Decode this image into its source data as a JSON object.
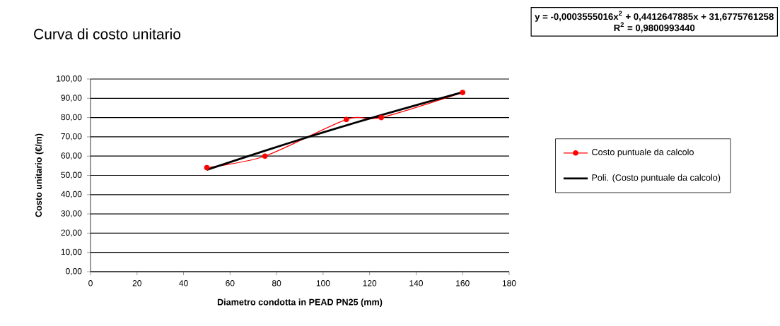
{
  "chart_data": {
    "type": "line",
    "title": "Curva di costo unitario",
    "xlabel": "Diametro condotta in PEAD PN25 (mm)",
    "ylabel": "Costo unitario (€/m)",
    "annotations": [
      "y = -0,0003555016x$^{2}$ + 0,4412647885x + 31,6775761258",
      "R$^{2}$ = 0,9800993440"
    ],
    "series": [
      {
        "name": "Costo puntuale da calcolo",
        "color": "#ff0000",
        "marker": "circle",
        "x": [
          50,
          75,
          110,
          125,
          160
        ],
        "values": [
          54,
          60,
          79,
          80,
          93
        ]
      },
      {
        "name": "Poli. (Costo puntuale da calcolo)",
        "color": "#000000",
        "marker": "none",
        "x": [
          50,
          75,
          100,
          125,
          160
        ],
        "values": [
          52.9,
          62.8,
          72.3,
          81.3,
          93.2
        ]
      }
    ],
    "xlim": [
      0,
      180
    ],
    "xticks": [
      0,
      20,
      40,
      60,
      80,
      100,
      120,
      140,
      160,
      180
    ],
    "ylim": [
      0,
      100
    ],
    "yticks": [
      {
        "value": 0,
        "label": "0,00"
      },
      {
        "value": 10,
        "label": "10,00"
      },
      {
        "value": 20,
        "label": "20,00"
      },
      {
        "value": 30,
        "label": "30,00"
      },
      {
        "value": 40,
        "label": "40,00"
      },
      {
        "value": 50,
        "label": "50,00"
      },
      {
        "value": 60,
        "label": "60,00"
      },
      {
        "value": 70,
        "label": "70,00"
      },
      {
        "value": 80,
        "label": "80,00"
      },
      {
        "value": 90,
        "label": "90,00"
      },
      {
        "value": 100,
        "label": "100,00"
      }
    ],
    "grid": "y",
    "legend": "right"
  }
}
